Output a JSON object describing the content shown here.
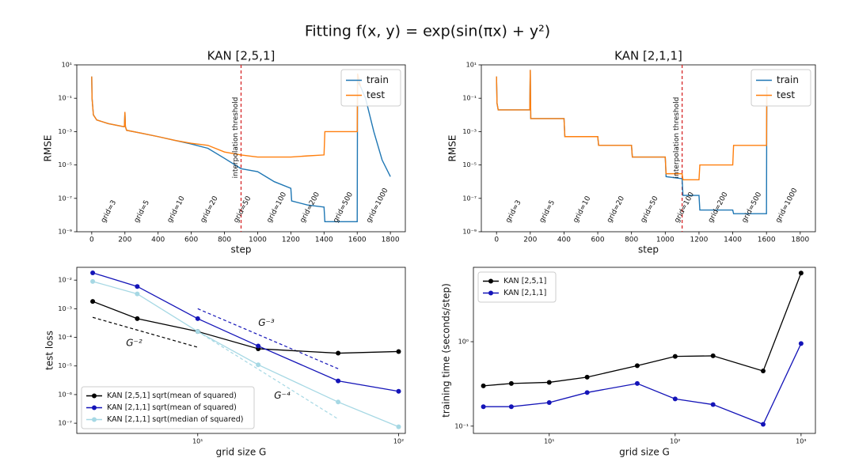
{
  "suptitle": "Fitting f(x, y) = exp(sin(πx) + y²)",
  "chart_data": [
    {
      "type": "line",
      "title": "KAN [2,5,1]",
      "xlabel": "step",
      "ylabel": "RMSE",
      "xscale": "linear",
      "yscale": "log",
      "xlim": [
        -90,
        1890
      ],
      "ylim": [
        1e-09,
        10
      ],
      "xticks": [
        0,
        200,
        400,
        600,
        800,
        1000,
        1200,
        1400,
        1600,
        1800
      ],
      "yticks": [
        {
          "value": 1e-09,
          "label": "10⁻⁹"
        },
        {
          "value": 1e-07,
          "label": "10⁻⁷"
        },
        {
          "value": 1e-05,
          "label": "10⁻⁵"
        },
        {
          "value": 0.001,
          "label": "10⁻³"
        },
        {
          "value": 0.1,
          "label": "10⁻¹"
        },
        {
          "value": 10,
          "label": "10¹"
        }
      ],
      "legend": "upper right",
      "series": [
        {
          "name": "train",
          "color": "#1f77b4",
          "x": [
            0,
            2,
            10,
            30,
            100,
            190,
            197,
            200,
            203,
            210,
            300,
            400,
            500,
            600,
            700,
            800,
            900,
            1000,
            1050,
            1100,
            1200,
            1205,
            1300,
            1400,
            1405,
            1600,
            1602,
            1620,
            1650,
            1700,
            1750,
            1800
          ],
          "values": [
            2,
            0.1,
            0.01,
            0.005,
            0.003,
            0.002,
            0.002,
            0.015,
            0.002,
            0.0012,
            0.0008,
            0.0005,
            0.0003,
            0.00018,
            0.0001,
            2.5e-05,
            6e-06,
            4e-06,
            2e-06,
            1e-06,
            4e-07,
            7e-08,
            4e-08,
            3e-08,
            4e-09,
            4e-09,
            1,
            0.5,
            0.1,
            0.001,
            2e-05,
            2e-06
          ]
        },
        {
          "name": "test",
          "color": "#ff7f0e",
          "x": [
            0,
            2,
            10,
            30,
            100,
            190,
            197,
            200,
            203,
            210,
            300,
            400,
            500,
            600,
            700,
            800,
            900,
            1000,
            1200,
            1300,
            1400,
            1405,
            1600,
            1602,
            1620
          ],
          "values": [
            2,
            0.1,
            0.01,
            0.005,
            0.003,
            0.002,
            0.002,
            0.015,
            0.002,
            0.0012,
            0.0008,
            0.0005,
            0.0003,
            0.0002,
            0.00015,
            6e-05,
            4e-05,
            3e-05,
            3e-05,
            3.5e-05,
            4e-05,
            0.001,
            0.001,
            3,
            0.5
          ]
        }
      ],
      "threshold": {
        "x": 900,
        "label": "interpolation threshold",
        "color": "#d62728"
      },
      "grid_labels": {
        "x": [
          0,
          200,
          400,
          600,
          800,
          1000,
          1200,
          1400,
          1600
        ],
        "labels": [
          "grid=3",
          "grid=5",
          "grid=10",
          "grid=20",
          "grid=50",
          "grid=100",
          "grid=200",
          "grid=500",
          "grid=1000"
        ]
      }
    },
    {
      "type": "line",
      "title": "KAN [2,1,1]",
      "xlabel": "step",
      "ylabel": "RMSE",
      "xscale": "linear",
      "yscale": "log",
      "xlim": [
        -90,
        1890
      ],
      "ylim": [
        1e-09,
        10
      ],
      "xticks": [
        0,
        200,
        400,
        600,
        800,
        1000,
        1200,
        1400,
        1600,
        1800
      ],
      "yticks": [
        {
          "value": 1e-09,
          "label": "10⁻⁹"
        },
        {
          "value": 1e-07,
          "label": "10⁻⁷"
        },
        {
          "value": 1e-05,
          "label": "10⁻⁵"
        },
        {
          "value": 0.001,
          "label": "10⁻³"
        },
        {
          "value": 0.1,
          "label": "10⁻¹"
        },
        {
          "value": 10,
          "label": "10¹"
        }
      ],
      "legend": "upper right",
      "series": [
        {
          "name": "train",
          "color": "#1f77b4",
          "x": [
            0,
            3,
            10,
            190,
            197,
            200,
            203,
            210,
            400,
            405,
            600,
            605,
            800,
            805,
            1000,
            1005,
            1100,
            1105,
            1200,
            1205,
            1400,
            1405,
            1600,
            1602
          ],
          "values": [
            2,
            0.05,
            0.02,
            0.02,
            0.02,
            5,
            0.006,
            0.006,
            0.006,
            0.0005,
            0.0005,
            0.00015,
            0.00015,
            3e-05,
            3e-05,
            2e-06,
            1.5e-06,
            1.5e-07,
            1.5e-07,
            2e-08,
            2e-08,
            1.2e-08,
            1.2e-08,
            0.5
          ]
        },
        {
          "name": "test",
          "color": "#ff7f0e",
          "x": [
            0,
            3,
            10,
            190,
            197,
            200,
            203,
            210,
            400,
            405,
            600,
            605,
            800,
            805,
            1000,
            1005,
            1100,
            1105,
            1200,
            1205,
            1400,
            1405,
            1600,
            1602
          ],
          "values": [
            2,
            0.05,
            0.02,
            0.02,
            0.02,
            5,
            0.006,
            0.006,
            0.006,
            0.0005,
            0.0005,
            0.00015,
            0.00015,
            3e-05,
            3e-05,
            3e-06,
            3e-06,
            1.3e-06,
            1.3e-06,
            1e-05,
            1e-05,
            0.00015,
            0.00015,
            0.5
          ]
        }
      ],
      "threshold": {
        "x": 1100,
        "label": "interpolation threshold",
        "color": "#d62728"
      },
      "grid_labels": {
        "x": [
          0,
          200,
          400,
          600,
          800,
          1000,
          1200,
          1400,
          1600
        ],
        "labels": [
          "grid=3",
          "grid=5",
          "grid=10",
          "grid=20",
          "grid=50",
          "grid=100",
          "grid=200",
          "grid=500",
          "grid=1000"
        ]
      }
    },
    {
      "type": "line",
      "xlabel": "grid size G",
      "ylabel": "test loss",
      "xscale": "log",
      "yscale": "log",
      "markers": true,
      "xlim": [
        2.5,
        108
      ],
      "ylim": [
        4.4e-08,
        0.028
      ],
      "xticks": [
        {
          "value": 10,
          "label": "10¹"
        },
        {
          "value": 100,
          "label": "10²"
        }
      ],
      "yticks": [
        {
          "value": 1e-07,
          "label": "10⁻⁷"
        },
        {
          "value": 1e-06,
          "label": "10⁻⁶"
        },
        {
          "value": 1e-05,
          "label": "10⁻⁵"
        },
        {
          "value": 0.0001,
          "label": "10⁻⁴"
        },
        {
          "value": 0.001,
          "label": "10⁻³"
        },
        {
          "value": 0.01,
          "label": "10⁻²"
        }
      ],
      "legend": "lower left",
      "x": [
        3,
        5,
        10,
        20,
        50,
        100
      ],
      "series": [
        {
          "name": "KAN [2,5,1] sqrt(mean of squared)",
          "color": "#000000",
          "values": [
            0.0018,
            0.00045,
            0.00016,
            4e-05,
            2.8e-05,
            3.2e-05
          ]
        },
        {
          "name": "KAN [2,1,1] sqrt(mean of squared)",
          "color": "#1414b8",
          "values": [
            0.018,
            0.006,
            0.00045,
            5e-05,
            3e-06,
            1.3e-06
          ]
        },
        {
          "name": "KAN [2,1,1] sqrt(median of squared)",
          "color": "#a6d8e4",
          "values": [
            0.009,
            0.0033,
            0.00016,
            1.1e-05,
            5.5e-07,
            7.5e-08
          ]
        }
      ],
      "ref_lines": [
        {
          "label": "G⁻²",
          "color": "#000000",
          "x": [
            3,
            10
          ],
          "values": [
            0.0005,
            4.5e-05
          ]
        },
        {
          "label": "G⁻³",
          "color": "#1414b8",
          "x": [
            10,
            50
          ],
          "values": [
            0.001,
            8e-06
          ]
        },
        {
          "label": "G⁻⁴",
          "color": "#a6d8e4",
          "x": [
            10,
            50
          ],
          "values": [
            0.00016,
            1.4e-07
          ]
        }
      ]
    },
    {
      "type": "line",
      "xlabel": "grid size G",
      "ylabel": "training time (seconds/step)",
      "xscale": "log",
      "yscale": "log",
      "markers": true,
      "xlim": [
        2.5,
        1300
      ],
      "ylim": [
        0.082,
        7.6
      ],
      "xticks": [
        {
          "value": 10,
          "label": "10¹"
        },
        {
          "value": 100,
          "label": "10²"
        },
        {
          "value": 1000,
          "label": "10³"
        }
      ],
      "yticks": [
        {
          "value": 0.1,
          "label": "10⁻¹"
        },
        {
          "value": 1,
          "label": "10⁰"
        }
      ],
      "legend": "upper left",
      "x": [
        3,
        5,
        10,
        20,
        50,
        100,
        200,
        500,
        1000
      ],
      "series": [
        {
          "name": "KAN [2,5,1]",
          "color": "#000000",
          "values": [
            0.3,
            0.32,
            0.33,
            0.38,
            0.52,
            0.67,
            0.68,
            0.45,
            6.5
          ]
        },
        {
          "name": "KAN [2,1,1]",
          "color": "#1414b8",
          "values": [
            0.17,
            0.17,
            0.19,
            0.25,
            0.32,
            0.21,
            0.18,
            0.105,
            0.95
          ]
        }
      ]
    }
  ]
}
